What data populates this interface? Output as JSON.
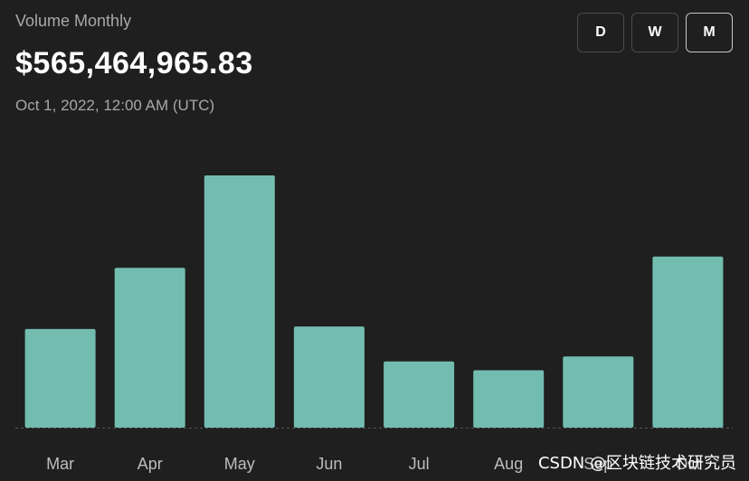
{
  "header": {
    "subtitle": "Volume Monthly",
    "amount": "$565,464,965.83",
    "date": "Oct 1, 2022, 12:00 AM (UTC)"
  },
  "period_toggle": {
    "day": "D",
    "week": "W",
    "month": "M",
    "selected": "M"
  },
  "colors": {
    "bar": "#72bdb0",
    "background": "#1f1f1f",
    "axis_label": "#bdbdbd",
    "baseline": "#555555"
  },
  "watermark": "CSDN @区块链技术研究员",
  "chart_data": {
    "type": "bar",
    "categories": [
      "Mar",
      "Apr",
      "May",
      "Jun",
      "Jul",
      "Aug",
      "Sep",
      "Oct"
    ],
    "values": [
      395,
      640,
      1010,
      405,
      265,
      230,
      285,
      685
    ],
    "ylim": [
      0,
      1050
    ],
    "grid": false
  }
}
